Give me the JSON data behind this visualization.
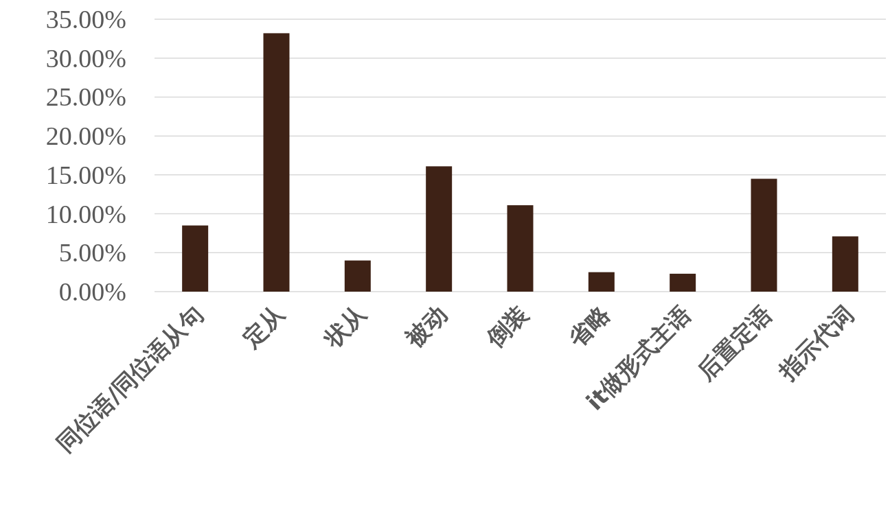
{
  "chart_data": {
    "type": "bar",
    "categories": [
      "同位语/同位语从句",
      "定从",
      "状从",
      "被动",
      "倒装",
      "省略",
      "it做形式主语",
      "后置定语",
      "指示代词"
    ],
    "values": [
      8.5,
      33.2,
      4.0,
      16.1,
      11.1,
      2.5,
      2.3,
      14.5,
      7.1
    ],
    "color": "#3e2216",
    "ylim": [
      0,
      35
    ],
    "yticks": [
      {
        "value": 0,
        "label": "0.00%"
      },
      {
        "value": 5,
        "label": "5.00%"
      },
      {
        "value": 10,
        "label": "10.00%"
      },
      {
        "value": 15,
        "label": "15.00%"
      },
      {
        "value": 20,
        "label": "20.00%"
      },
      {
        "value": 25,
        "label": "25.00%"
      },
      {
        "value": 30,
        "label": "30.00%"
      },
      {
        "value": 35,
        "label": "35.00%"
      }
    ],
    "grid": "y"
  }
}
